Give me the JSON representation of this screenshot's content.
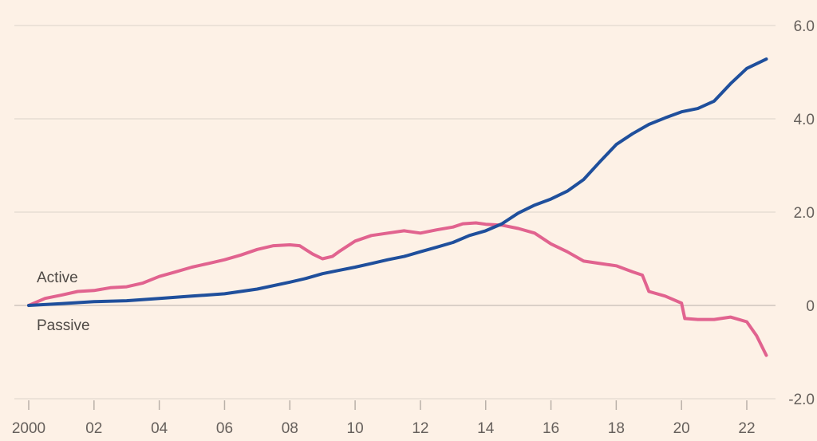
{
  "chart_data": {
    "type": "line",
    "title": "",
    "xlabel": "",
    "ylabel": "",
    "xlim": [
      2000,
      2022.7
    ],
    "ylim": [
      -2.0,
      6.0
    ],
    "grid": true,
    "y_ticks": [
      {
        "value": -2.0,
        "label": "-2.0"
      },
      {
        "value": 0,
        "label": "0"
      },
      {
        "value": 2.0,
        "label": "2.0"
      },
      {
        "value": 4.0,
        "label": "4.0"
      },
      {
        "value": 6.0,
        "label": "6.0"
      }
    ],
    "x_ticks": [
      {
        "value": 2000,
        "label": "2000"
      },
      {
        "value": 2002,
        "label": "02"
      },
      {
        "value": 2004,
        "label": "04"
      },
      {
        "value": 2006,
        "label": "06"
      },
      {
        "value": 2008,
        "label": "08"
      },
      {
        "value": 2010,
        "label": "10"
      },
      {
        "value": 2012,
        "label": "12"
      },
      {
        "value": 2014,
        "label": "14"
      },
      {
        "value": 2016,
        "label": "16"
      },
      {
        "value": 2018,
        "label": "18"
      },
      {
        "value": 2020,
        "label": "20"
      },
      {
        "value": 2022,
        "label": "22"
      }
    ],
    "series": [
      {
        "name": "Active",
        "color": "#e1638f",
        "x": [
          2000,
          2000.5,
          2001,
          2001.5,
          2002,
          2002.5,
          2003,
          2003.5,
          2004,
          2004.5,
          2005,
          2005.5,
          2006,
          2006.5,
          2007,
          2007.5,
          2008,
          2008.3,
          2008.7,
          2009,
          2009.3,
          2009.5,
          2010,
          2010.5,
          2011,
          2011.5,
          2012,
          2012.5,
          2013,
          2013.3,
          2013.7,
          2014,
          2014.5,
          2015,
          2015.5,
          2016,
          2016.5,
          2017,
          2017.5,
          2018,
          2018.5,
          2018.8,
          2019,
          2019.5,
          2020,
          2020.1,
          2020.5,
          2021,
          2021.5,
          2022,
          2022.3,
          2022.6
        ],
        "y": [
          0.0,
          0.15,
          0.22,
          0.3,
          0.32,
          0.38,
          0.4,
          0.48,
          0.62,
          0.72,
          0.82,
          0.9,
          0.98,
          1.08,
          1.2,
          1.28,
          1.3,
          1.28,
          1.1,
          1.0,
          1.05,
          1.15,
          1.38,
          1.5,
          1.55,
          1.6,
          1.55,
          1.62,
          1.68,
          1.75,
          1.77,
          1.74,
          1.72,
          1.65,
          1.55,
          1.32,
          1.15,
          0.95,
          0.9,
          0.85,
          0.72,
          0.65,
          0.3,
          0.2,
          0.05,
          -0.28,
          -0.3,
          -0.3,
          -0.25,
          -0.35,
          -0.65,
          -1.07
        ]
      },
      {
        "name": "Passive",
        "color": "#1f4f9c",
        "x": [
          2000,
          2001,
          2002,
          2003,
          2004,
          2005,
          2006,
          2007,
          2008,
          2008.5,
          2009,
          2009.5,
          2010,
          2010.5,
          2011,
          2011.5,
          2012,
          2012.5,
          2013,
          2013.5,
          2014,
          2014.5,
          2015,
          2015.5,
          2016,
          2016.5,
          2017,
          2017.5,
          2018,
          2018.5,
          2019,
          2019.5,
          2020,
          2020.5,
          2021,
          2021.5,
          2022,
          2022.6
        ],
        "y": [
          0.0,
          0.04,
          0.08,
          0.1,
          0.15,
          0.2,
          0.25,
          0.35,
          0.5,
          0.58,
          0.68,
          0.75,
          0.82,
          0.9,
          0.98,
          1.05,
          1.15,
          1.25,
          1.35,
          1.5,
          1.6,
          1.75,
          1.98,
          2.15,
          2.28,
          2.45,
          2.7,
          3.08,
          3.45,
          3.68,
          3.88,
          4.02,
          4.15,
          4.22,
          4.38,
          4.75,
          5.08,
          5.28
        ]
      }
    ]
  }
}
